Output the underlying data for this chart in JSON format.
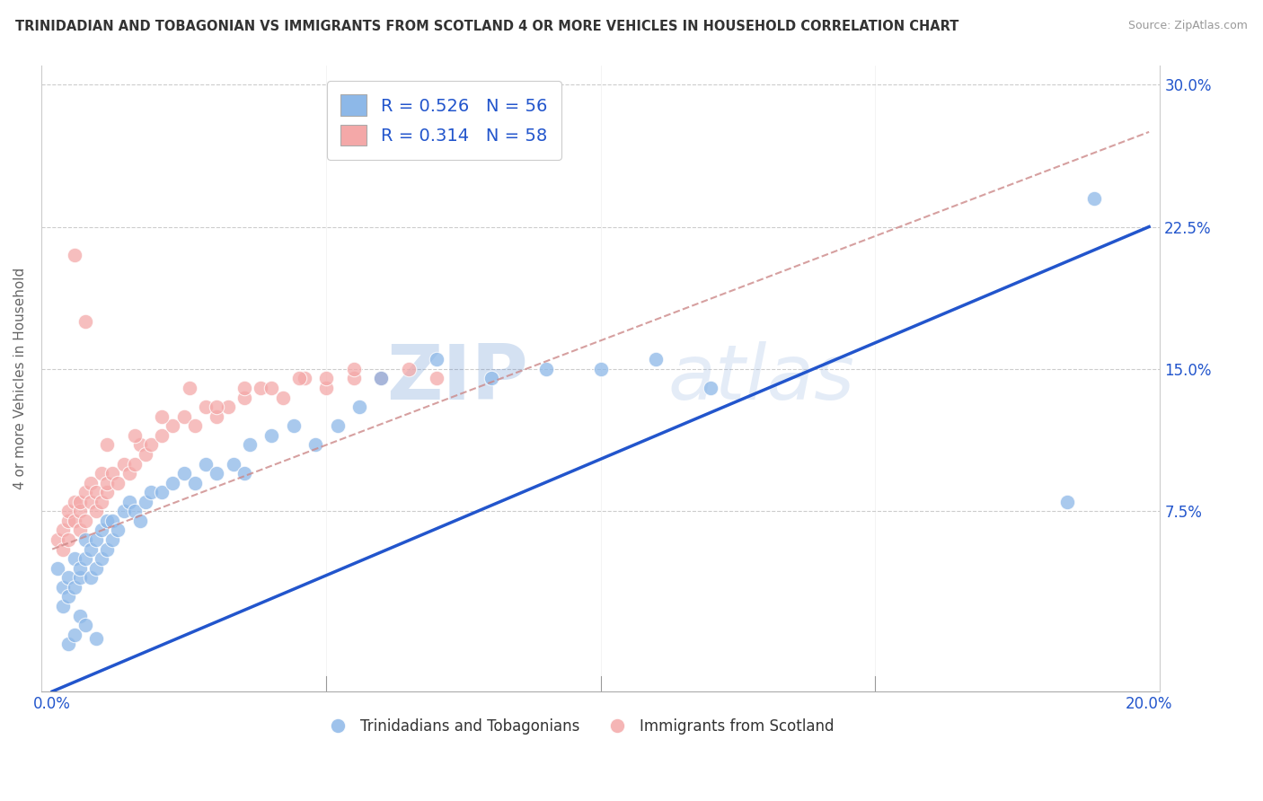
{
  "title": "TRINIDADIAN AND TOBAGONIAN VS IMMIGRANTS FROM SCOTLAND 4 OR MORE VEHICLES IN HOUSEHOLD CORRELATION CHART",
  "source": "Source: ZipAtlas.com",
  "ylabel": "4 or more Vehicles in Household",
  "watermark_zip": "ZIP",
  "watermark_atlas": "atlas",
  "blue_label": "Trinidadians and Tobagonians",
  "pink_label": "Immigrants from Scotland",
  "blue_R": 0.526,
  "blue_N": 56,
  "pink_R": 0.314,
  "pink_N": 58,
  "xlim": [
    -0.002,
    0.202
  ],
  "ylim": [
    -0.02,
    0.31
  ],
  "xticks": [
    0.0,
    0.2
  ],
  "yticks": [
    0.075,
    0.15,
    0.225,
    0.3
  ],
  "xticklabels": [
    "0.0%",
    "20.0%"
  ],
  "yticklabels": [
    "7.5%",
    "15.0%",
    "22.5%",
    "30.0%"
  ],
  "blue_color": "#8db8e8",
  "pink_color": "#f4a8a8",
  "blue_line_color": "#2255cc",
  "pink_line_color": "#cc8888",
  "background_color": "#ffffff",
  "grid_color": "#cccccc",
  "title_color": "#333333",
  "legend_text_color": "#2255cc",
  "blue_scatter_x": [
    0.001,
    0.002,
    0.002,
    0.003,
    0.003,
    0.004,
    0.004,
    0.005,
    0.005,
    0.005,
    0.006,
    0.006,
    0.007,
    0.007,
    0.008,
    0.008,
    0.009,
    0.009,
    0.01,
    0.01,
    0.011,
    0.011,
    0.012,
    0.013,
    0.014,
    0.015,
    0.016,
    0.017,
    0.018,
    0.02,
    0.022,
    0.024,
    0.026,
    0.028,
    0.03,
    0.033,
    0.036,
    0.04,
    0.044,
    0.048,
    0.052,
    0.056,
    0.06,
    0.07,
    0.08,
    0.09,
    0.1,
    0.11,
    0.12,
    0.035,
    0.003,
    0.004,
    0.006,
    0.008,
    0.185,
    0.19
  ],
  "blue_scatter_y": [
    0.045,
    0.025,
    0.035,
    0.03,
    0.04,
    0.05,
    0.035,
    0.02,
    0.04,
    0.045,
    0.05,
    0.06,
    0.04,
    0.055,
    0.045,
    0.06,
    0.05,
    0.065,
    0.055,
    0.07,
    0.06,
    0.07,
    0.065,
    0.075,
    0.08,
    0.075,
    0.07,
    0.08,
    0.085,
    0.085,
    0.09,
    0.095,
    0.09,
    0.1,
    0.095,
    0.1,
    0.11,
    0.115,
    0.12,
    0.11,
    0.12,
    0.13,
    0.145,
    0.155,
    0.145,
    0.15,
    0.15,
    0.155,
    0.14,
    0.095,
    0.005,
    0.01,
    0.015,
    0.008,
    0.08,
    0.24
  ],
  "pink_scatter_x": [
    0.001,
    0.002,
    0.002,
    0.003,
    0.003,
    0.003,
    0.004,
    0.004,
    0.005,
    0.005,
    0.005,
    0.006,
    0.006,
    0.007,
    0.007,
    0.008,
    0.008,
    0.009,
    0.009,
    0.01,
    0.01,
    0.011,
    0.012,
    0.013,
    0.014,
    0.015,
    0.016,
    0.017,
    0.018,
    0.02,
    0.022,
    0.024,
    0.026,
    0.028,
    0.03,
    0.032,
    0.035,
    0.038,
    0.042,
    0.046,
    0.05,
    0.055,
    0.06,
    0.065,
    0.07,
    0.025,
    0.015,
    0.02,
    0.01,
    0.03,
    0.035,
    0.04,
    0.045,
    0.05,
    0.055,
    0.06,
    0.004,
    0.006
  ],
  "pink_scatter_y": [
    0.06,
    0.055,
    0.065,
    0.07,
    0.075,
    0.06,
    0.07,
    0.08,
    0.065,
    0.075,
    0.08,
    0.07,
    0.085,
    0.08,
    0.09,
    0.075,
    0.085,
    0.08,
    0.095,
    0.085,
    0.09,
    0.095,
    0.09,
    0.1,
    0.095,
    0.1,
    0.11,
    0.105,
    0.11,
    0.115,
    0.12,
    0.125,
    0.12,
    0.13,
    0.125,
    0.13,
    0.135,
    0.14,
    0.135,
    0.145,
    0.14,
    0.145,
    0.145,
    0.15,
    0.145,
    0.14,
    0.115,
    0.125,
    0.11,
    0.13,
    0.14,
    0.14,
    0.145,
    0.145,
    0.15,
    0.145,
    0.21,
    0.175
  ],
  "blue_line_x0": 0.0,
  "blue_line_y0": -0.02,
  "blue_line_x1": 0.2,
  "blue_line_y1": 0.225,
  "pink_line_x0": 0.0,
  "pink_line_y0": 0.055,
  "pink_line_x1": 0.2,
  "pink_line_y1": 0.275
}
